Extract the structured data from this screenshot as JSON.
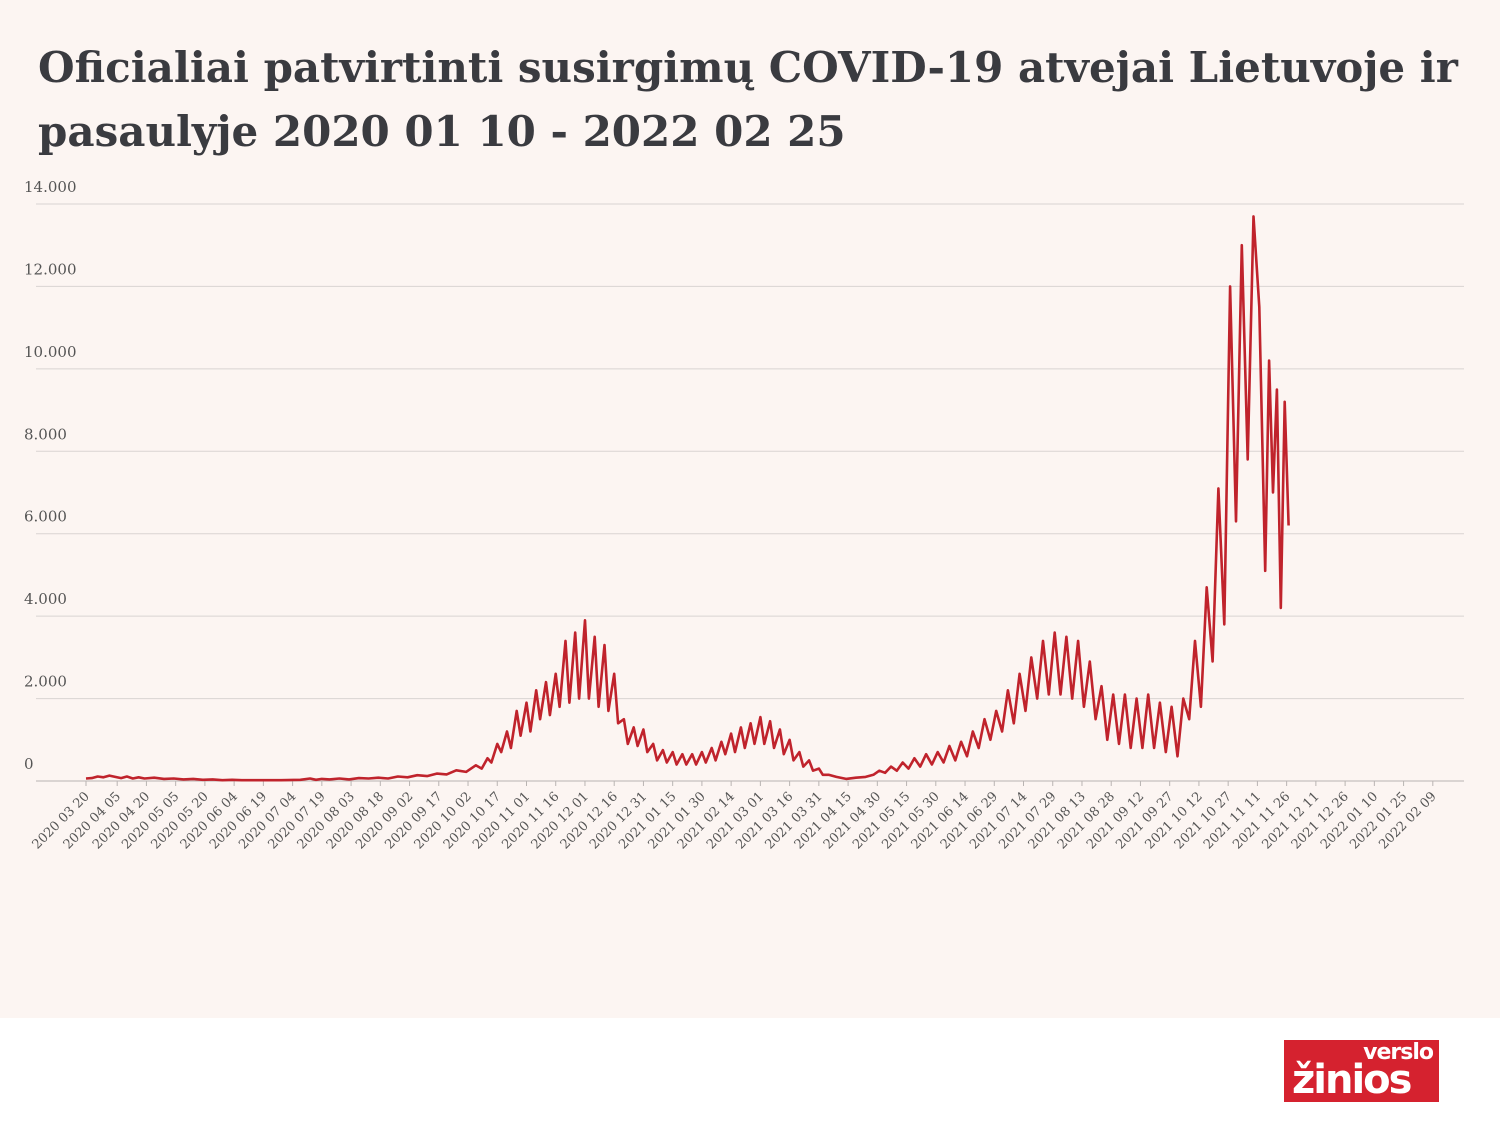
{
  "chart_data": {
    "type": "line",
    "title": "Oficialiai patvirtinti susirgimų COVID-19 atvejai Lietuvoje ir pasaulyje 2020 01 10 - 2022 02 25",
    "xlabel": "",
    "ylabel": "",
    "ylim": [
      0,
      14000
    ],
    "yticks": [
      "0",
      "2.000",
      "4.000",
      "6.000",
      "8.000",
      "10.000",
      "12.000",
      "14.000"
    ],
    "xtick_labels": [
      "2020 03 20",
      "2020 04 05",
      "2020 04 20",
      "2020 05 05",
      "2020 05 20",
      "2020 06 04",
      "2020 06 19",
      "2020 07 04",
      "2020 07 19",
      "2020 08 03",
      "2020 08 18",
      "2020 09 02",
      "2020 09 17",
      "2020 10 02",
      "2020 10 17",
      "2020 11 01",
      "2020 11 16",
      "2020 12 01",
      "2020 12 16",
      "2020 12 31",
      "2021 01 15",
      "2021 01 30",
      "2021 02 14",
      "2021 03 01",
      "2021 03 16",
      "2021 03 31",
      "2021 04 15",
      "2021 04 30",
      "2021 05 15",
      "2021 05 30",
      "2021 06 14",
      "2021 06 29",
      "2021 07 14",
      "2021 07 29",
      "2021 08 13",
      "2021 08 28",
      "2021 09 12",
      "2021 09 27",
      "2021 10 12",
      "2021 10 27",
      "2021 11 11",
      "2021 11 26",
      "2021 12 11",
      "2021 12 26",
      "2022 01 10",
      "2022 01 25",
      "2022 02 09"
    ],
    "grid": true,
    "legend": "none",
    "series_color": "#c0232c",
    "x_start": "2020-03-20",
    "x_end": "2022-02-25",
    "series": [
      {
        "values": [
          [
            0,
            60
          ],
          [
            3,
            70
          ],
          [
            6,
            110
          ],
          [
            9,
            90
          ],
          [
            12,
            130
          ],
          [
            15,
            100
          ],
          [
            18,
            70
          ],
          [
            21,
            110
          ],
          [
            24,
            60
          ],
          [
            27,
            90
          ],
          [
            30,
            60
          ],
          [
            35,
            80
          ],
          [
            40,
            50
          ],
          [
            45,
            60
          ],
          [
            50,
            40
          ],
          [
            55,
            50
          ],
          [
            60,
            30
          ],
          [
            65,
            40
          ],
          [
            70,
            20
          ],
          [
            75,
            30
          ],
          [
            80,
            20
          ],
          [
            90,
            20
          ],
          [
            100,
            20
          ],
          [
            110,
            30
          ],
          [
            115,
            60
          ],
          [
            118,
            30
          ],
          [
            121,
            50
          ],
          [
            125,
            40
          ],
          [
            130,
            60
          ],
          [
            135,
            40
          ],
          [
            140,
            70
          ],
          [
            145,
            60
          ],
          [
            150,
            80
          ],
          [
            155,
            60
          ],
          [
            160,
            110
          ],
          [
            165,
            90
          ],
          [
            170,
            140
          ],
          [
            175,
            120
          ],
          [
            180,
            180
          ],
          [
            185,
            160
          ],
          [
            190,
            260
          ],
          [
            195,
            220
          ],
          [
            200,
            380
          ],
          [
            203,
            300
          ],
          [
            206,
            550
          ],
          [
            208,
            450
          ],
          [
            211,
            900
          ],
          [
            213,
            700
          ],
          [
            216,
            1200
          ],
          [
            218,
            800
          ],
          [
            221,
            1700
          ],
          [
            223,
            1100
          ],
          [
            226,
            1900
          ],
          [
            228,
            1200
          ],
          [
            231,
            2200
          ],
          [
            233,
            1500
          ],
          [
            236,
            2400
          ],
          [
            238,
            1600
          ],
          [
            241,
            2600
          ],
          [
            243,
            1800
          ],
          [
            246,
            3400
          ],
          [
            248,
            1900
          ],
          [
            251,
            3600
          ],
          [
            253,
            2000
          ],
          [
            256,
            3900
          ],
          [
            258,
            2000
          ],
          [
            261,
            3500
          ],
          [
            263,
            1800
          ],
          [
            266,
            3300
          ],
          [
            268,
            1700
          ],
          [
            271,
            2600
          ],
          [
            273,
            1400
          ],
          [
            276,
            1500
          ],
          [
            278,
            900
          ],
          [
            281,
            1300
          ],
          [
            283,
            850
          ],
          [
            286,
            1250
          ],
          [
            288,
            700
          ],
          [
            291,
            900
          ],
          [
            293,
            500
          ],
          [
            296,
            750
          ],
          [
            298,
            450
          ],
          [
            301,
            700
          ],
          [
            303,
            400
          ],
          [
            306,
            650
          ],
          [
            308,
            400
          ],
          [
            311,
            650
          ],
          [
            313,
            400
          ],
          [
            316,
            700
          ],
          [
            318,
            450
          ],
          [
            321,
            800
          ],
          [
            323,
            500
          ],
          [
            326,
            950
          ],
          [
            328,
            650
          ],
          [
            331,
            1150
          ],
          [
            333,
            700
          ],
          [
            336,
            1300
          ],
          [
            338,
            800
          ],
          [
            341,
            1400
          ],
          [
            343,
            900
          ],
          [
            346,
            1550
          ],
          [
            348,
            900
          ],
          [
            351,
            1450
          ],
          [
            353,
            800
          ],
          [
            356,
            1250
          ],
          [
            358,
            650
          ],
          [
            361,
            1000
          ],
          [
            363,
            500
          ],
          [
            366,
            700
          ],
          [
            368,
            350
          ],
          [
            371,
            500
          ],
          [
            373,
            250
          ],
          [
            376,
            300
          ],
          [
            378,
            150
          ],
          [
            381,
            150
          ],
          [
            385,
            100
          ],
          [
            390,
            50
          ],
          [
            395,
            80
          ],
          [
            400,
            100
          ],
          [
            404,
            150
          ],
          [
            407,
            250
          ],
          [
            410,
            200
          ],
          [
            413,
            350
          ],
          [
            416,
            250
          ],
          [
            419,
            450
          ],
          [
            422,
            300
          ],
          [
            425,
            550
          ],
          [
            428,
            350
          ],
          [
            431,
            650
          ],
          [
            434,
            400
          ],
          [
            437,
            700
          ],
          [
            440,
            450
          ],
          [
            443,
            850
          ],
          [
            446,
            500
          ],
          [
            449,
            950
          ],
          [
            452,
            600
          ],
          [
            455,
            1200
          ],
          [
            458,
            800
          ],
          [
            461,
            1500
          ],
          [
            464,
            1000
          ],
          [
            467,
            1700
          ],
          [
            470,
            1200
          ],
          [
            473,
            2200
          ],
          [
            476,
            1400
          ],
          [
            479,
            2600
          ],
          [
            482,
            1700
          ],
          [
            485,
            3000
          ],
          [
            488,
            2000
          ],
          [
            491,
            3400
          ],
          [
            494,
            2100
          ],
          [
            497,
            3600
          ],
          [
            500,
            2100
          ],
          [
            503,
            3500
          ],
          [
            506,
            2000
          ],
          [
            509,
            3400
          ],
          [
            512,
            1800
          ],
          [
            515,
            2900
          ],
          [
            518,
            1500
          ],
          [
            521,
            2300
          ],
          [
            524,
            1000
          ],
          [
            527,
            2100
          ],
          [
            530,
            900
          ],
          [
            533,
            2100
          ],
          [
            536,
            800
          ],
          [
            539,
            2000
          ],
          [
            542,
            800
          ],
          [
            545,
            2100
          ],
          [
            548,
            800
          ],
          [
            551,
            1900
          ],
          [
            554,
            700
          ],
          [
            557,
            1800
          ],
          [
            560,
            600
          ],
          [
            563,
            2000
          ],
          [
            566,
            1500
          ],
          [
            569,
            3400
          ],
          [
            572,
            1800
          ],
          [
            575,
            4700
          ],
          [
            578,
            2900
          ],
          [
            581,
            7100
          ],
          [
            584,
            3800
          ],
          [
            587,
            12000
          ],
          [
            590,
            6300
          ],
          [
            593,
            13000
          ],
          [
            596,
            7800
          ],
          [
            599,
            13700
          ],
          [
            602,
            11500
          ],
          [
            605,
            5100
          ],
          [
            607,
            10200
          ],
          [
            609,
            7000
          ],
          [
            611,
            9500
          ],
          [
            613,
            4200
          ],
          [
            615,
            9200
          ],
          [
            617,
            6200
          ]
        ]
      }
    ]
  },
  "logo": {
    "top": "verslo",
    "bottom": "žinios"
  }
}
